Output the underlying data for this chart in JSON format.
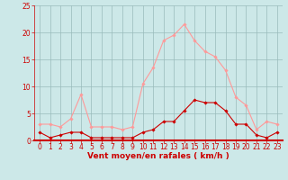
{
  "x": [
    0,
    1,
    2,
    3,
    4,
    5,
    6,
    7,
    8,
    9,
    10,
    11,
    12,
    13,
    14,
    15,
    16,
    17,
    18,
    19,
    20,
    21,
    22,
    23
  ],
  "moyen": [
    1.5,
    0.5,
    1.0,
    1.5,
    1.5,
    0.5,
    0.5,
    0.5,
    0.5,
    0.5,
    1.5,
    2.0,
    3.5,
    3.5,
    5.5,
    7.5,
    7.0,
    7.0,
    5.5,
    3.0,
    3.0,
    1.0,
    0.5,
    1.5
  ],
  "rafales": [
    3.0,
    3.0,
    2.5,
    4.0,
    8.5,
    2.5,
    2.5,
    2.5,
    2.0,
    2.5,
    10.5,
    13.5,
    18.5,
    19.5,
    21.5,
    18.5,
    16.5,
    15.5,
    13.0,
    8.0,
    6.5,
    2.0,
    3.5,
    3.0
  ],
  "color_moyen": "#cc0000",
  "color_rafales": "#ff9999",
  "bg_color": "#cce8e8",
  "grid_color": "#99bbbb",
  "xlabel": "Vent moyen/en rafales ( km/h )",
  "ylim": [
    0,
    25
  ],
  "xlim": [
    -0.5,
    23.5
  ],
  "yticks": [
    0,
    5,
    10,
    15,
    20,
    25
  ],
  "xticks": [
    0,
    1,
    2,
    3,
    4,
    5,
    6,
    7,
    8,
    9,
    10,
    11,
    12,
    13,
    14,
    15,
    16,
    17,
    18,
    19,
    20,
    21,
    22,
    23
  ],
  "tick_fontsize": 5.5,
  "xlabel_fontsize": 6.5,
  "marker": "D",
  "marker_size": 1.8,
  "line_width": 0.8
}
